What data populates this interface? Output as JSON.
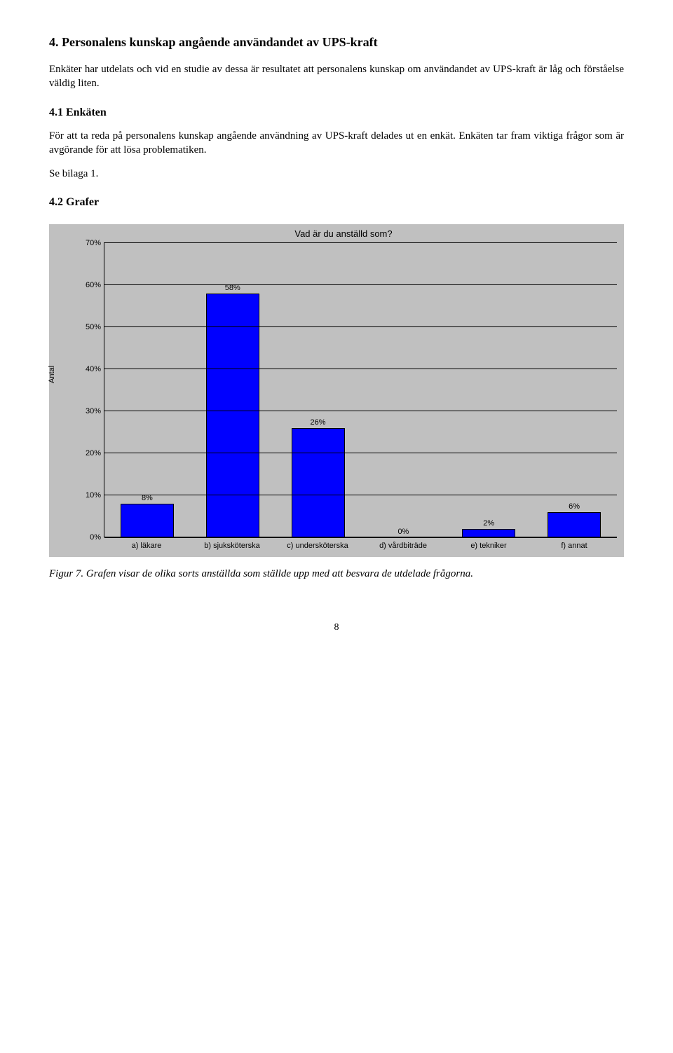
{
  "section": {
    "title": "4.  Personalens kunskap angående användandet av UPS-kraft",
    "intro": "Enkäter har utdelats och vid en studie av dessa är resultatet att personalens kunskap om användandet av UPS-kraft är låg och förståelse väldig liten."
  },
  "sub41": {
    "title": "4.1  Enkäten",
    "p1": "För att ta reda på personalens kunskap angående användning av UPS-kraft delades ut en enkät. Enkäten tar fram viktiga frågor som är avgörande för att lösa problematiken.",
    "p2": "Se bilaga 1."
  },
  "sub42": {
    "title": "4.2  Grafer"
  },
  "chart": {
    "title": "Vad är du anställd som?",
    "ylabel": "Antal",
    "ymax": 70,
    "ytick_step": 10,
    "yticks": [
      "0%",
      "10%",
      "20%",
      "30%",
      "40%",
      "50%",
      "60%",
      "70%"
    ],
    "bar_color": "#0000ff",
    "bar_border": "#000000",
    "background_color": "#c0c0c0",
    "categories": [
      {
        "label": "a) läkare",
        "value": 8,
        "display": "8%"
      },
      {
        "label": "b) sjuksköterska",
        "value": 58,
        "display": "58%"
      },
      {
        "label": "c) undersköterska",
        "value": 26,
        "display": "26%"
      },
      {
        "label": "d) vårdbiträde",
        "value": 0,
        "display": "0%"
      },
      {
        "label": "e) tekniker",
        "value": 2,
        "display": "2%"
      },
      {
        "label": "f) annat",
        "value": 6,
        "display": "6%"
      }
    ]
  },
  "caption": "Figur 7. Grafen visar de olika sorts anställda som ställde upp med att besvara de utdelade frågorna.",
  "page_number": "8"
}
